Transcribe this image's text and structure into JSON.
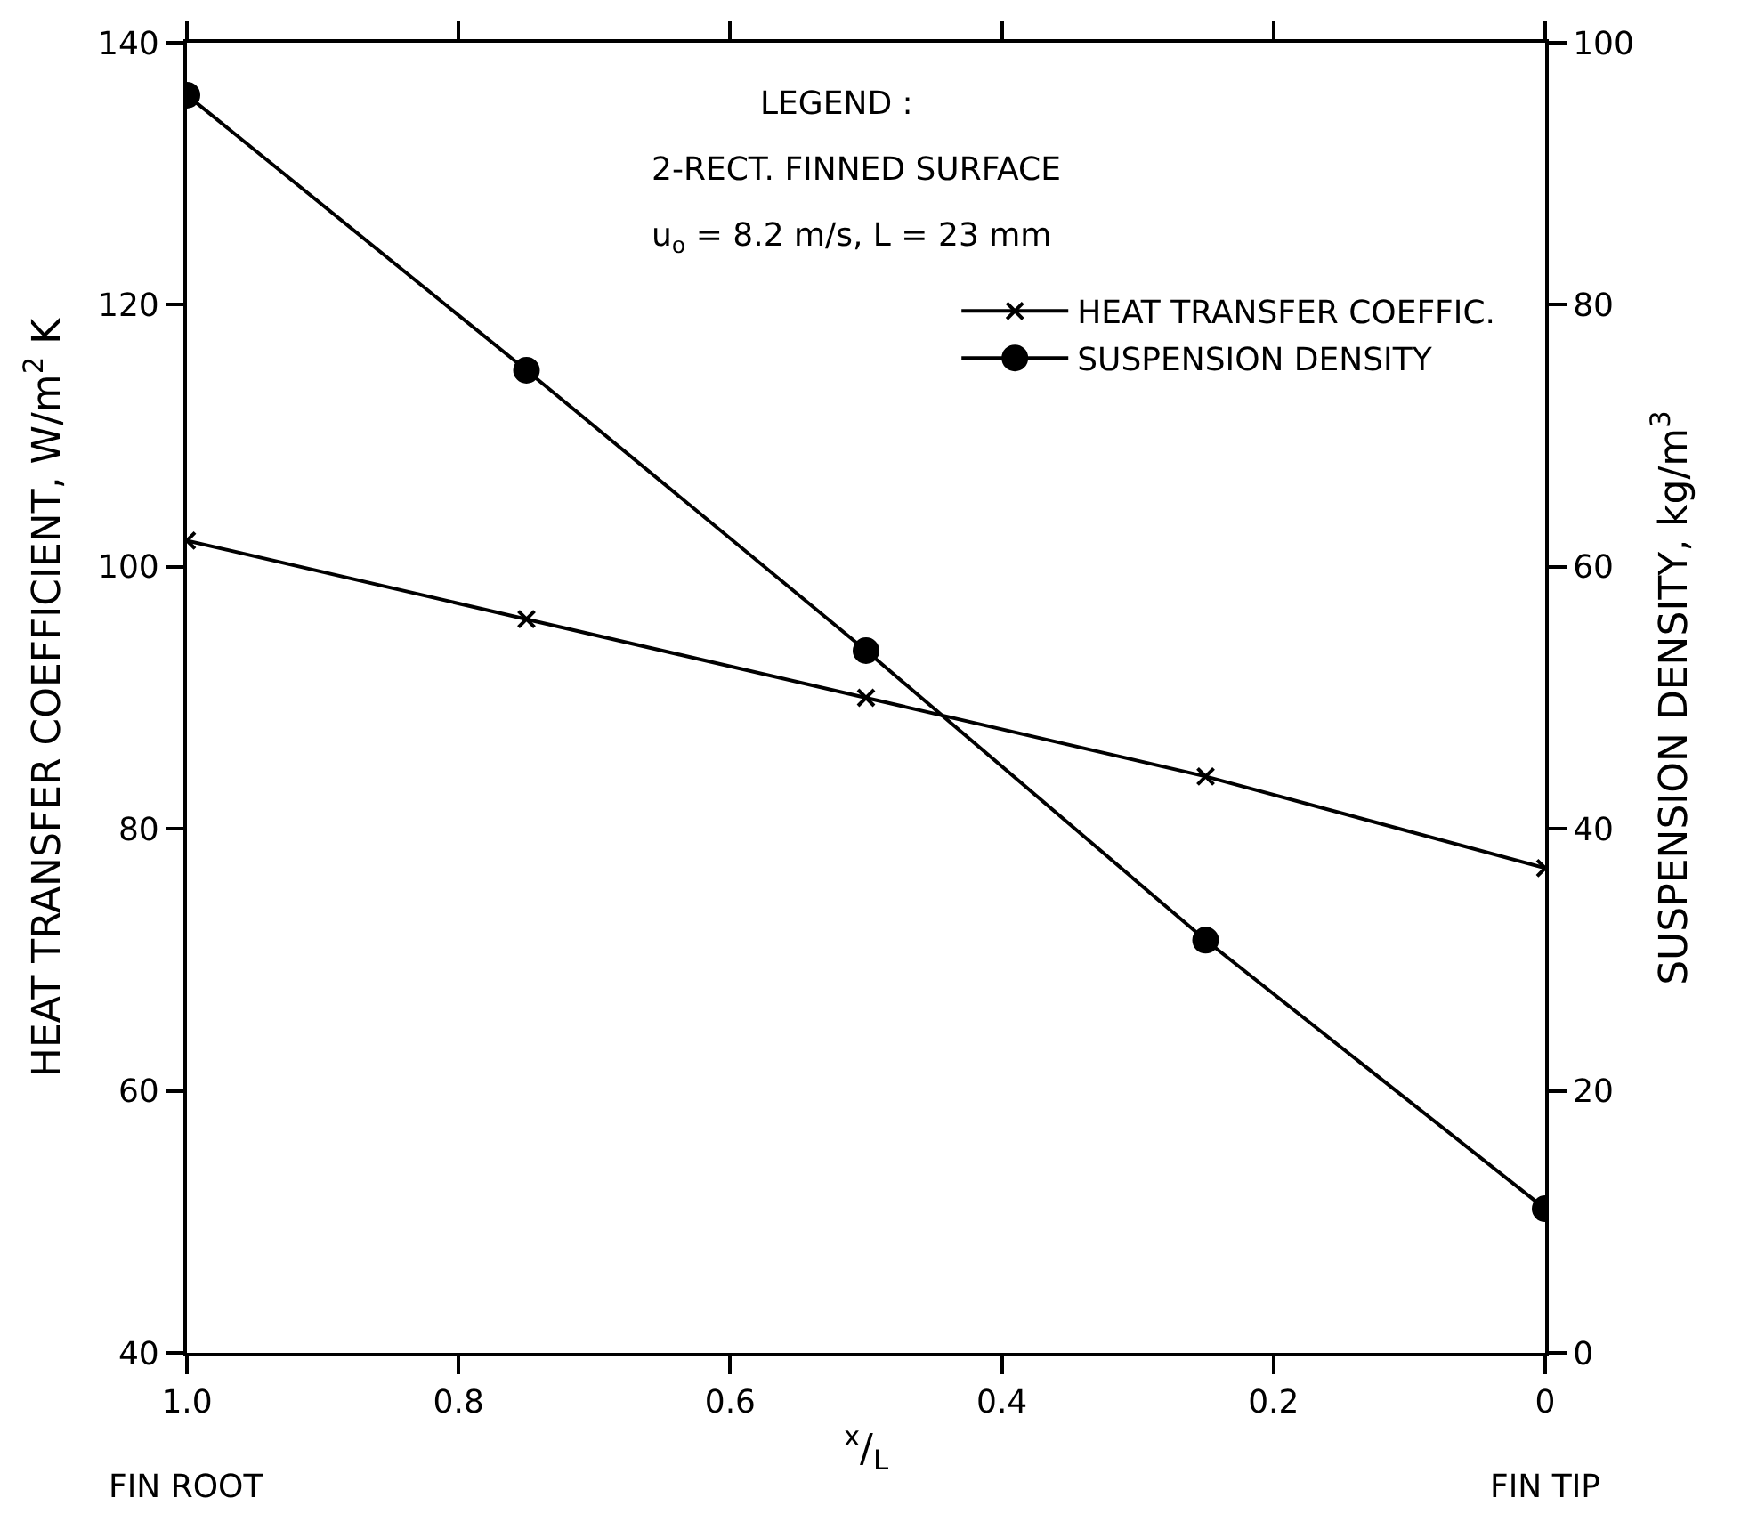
{
  "chart_data": {
    "type": "line",
    "xlabel": "$^{x}$/$_{L}$",
    "ylabel": "HEAT TRANSFER COEFFICIENT, W/m$^{2}$ K",
    "y2label": "SUSPENSION DENSITY, kg/m$^{3}$",
    "x": [
      1.0,
      0.75,
      0.5,
      0.25,
      0
    ],
    "series": [
      {
        "name": "HEAT TRANSFER COEFFIC.",
        "color": "#000000",
        "marker": "cross",
        "values": [
          102,
          96,
          90,
          84,
          77
        ]
      },
      {
        "name": "SUSPENSION DENSITY",
        "color": "#000000",
        "marker": "circle",
        "axis": "y2",
        "values": [
          96,
          75,
          53.6,
          31.5,
          11
        ]
      }
    ],
    "xlim": [
      1.0,
      0
    ],
    "xticks": [
      {
        "value": 1.0,
        "label": "1.0"
      },
      0.8,
      0.6,
      0.4,
      0.2,
      0
    ],
    "ylim": [
      40,
      140
    ],
    "yticks": [
      40,
      60,
      80,
      100,
      120,
      140
    ],
    "y2lim": [
      0,
      100
    ],
    "y2ticks": [
      0,
      20,
      40,
      60,
      80,
      100
    ],
    "annotations": [
      "LEGEND :",
      "2-RECT. FINNED SURFACE",
      "u$_{o}$ = 8.2 m/s, L = 23 mm",
      "FIN ROOT",
      "FIN TIP"
    ],
    "legend": "top right",
    "line_style": "solid"
  }
}
